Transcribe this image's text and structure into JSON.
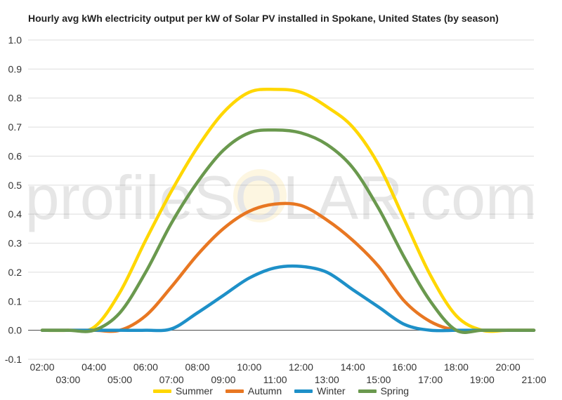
{
  "chart_data": {
    "type": "line",
    "title": "Hourly avg kWh electricity output per kW of Solar PV installed in Spokane, United States (by season)",
    "xlabel": "",
    "ylabel": "",
    "ylim": [
      -0.1,
      1.0
    ],
    "yticks": [
      "-0.1",
      "0.0",
      "0.1",
      "0.2",
      "0.3",
      "0.4",
      "0.5",
      "0.6",
      "0.7",
      "0.8",
      "0.9",
      "1.0"
    ],
    "xticks": [
      "02:00",
      "03:00",
      "04:00",
      "05:00",
      "06:00",
      "07:00",
      "08:00",
      "09:00",
      "10:00",
      "11:00",
      "12:00",
      "13:00",
      "14:00",
      "15:00",
      "16:00",
      "17:00",
      "18:00",
      "19:00",
      "20:00",
      "21:00"
    ],
    "x": [
      "02:00",
      "03:00",
      "04:00",
      "05:00",
      "06:00",
      "07:00",
      "08:00",
      "09:00",
      "10:00",
      "11:00",
      "12:00",
      "13:00",
      "14:00",
      "15:00",
      "16:00",
      "17:00",
      "18:00",
      "19:00",
      "20:00",
      "21:00"
    ],
    "grid": true,
    "legend_position": "bottom",
    "series": [
      {
        "name": "Summer",
        "color": "#FFD700",
        "values": [
          0.0,
          0.0,
          0.01,
          0.13,
          0.31,
          0.48,
          0.63,
          0.75,
          0.82,
          0.83,
          0.82,
          0.77,
          0.7,
          0.57,
          0.38,
          0.19,
          0.05,
          0.0,
          0.0,
          0.0
        ]
      },
      {
        "name": "Autumn",
        "color": "#E87722",
        "values": [
          0.0,
          0.0,
          0.0,
          0.0,
          0.05,
          0.15,
          0.26,
          0.35,
          0.41,
          0.435,
          0.43,
          0.38,
          0.31,
          0.22,
          0.1,
          0.03,
          0.0,
          0.0,
          0.0,
          0.0
        ]
      },
      {
        "name": "Winter",
        "color": "#1E90C8",
        "values": [
          0.0,
          0.0,
          0.0,
          0.0,
          0.0,
          0.005,
          0.06,
          0.12,
          0.18,
          0.215,
          0.22,
          0.2,
          0.14,
          0.08,
          0.02,
          0.0,
          0.0,
          0.0,
          0.0,
          0.0
        ]
      },
      {
        "name": "Spring",
        "color": "#6A994E",
        "values": [
          0.0,
          0.0,
          0.0,
          0.06,
          0.2,
          0.37,
          0.51,
          0.62,
          0.68,
          0.69,
          0.68,
          0.64,
          0.56,
          0.42,
          0.25,
          0.1,
          0.0,
          0.0,
          0.0,
          0.0
        ]
      }
    ]
  },
  "watermark": {
    "text": "profileSOLAR.com"
  }
}
